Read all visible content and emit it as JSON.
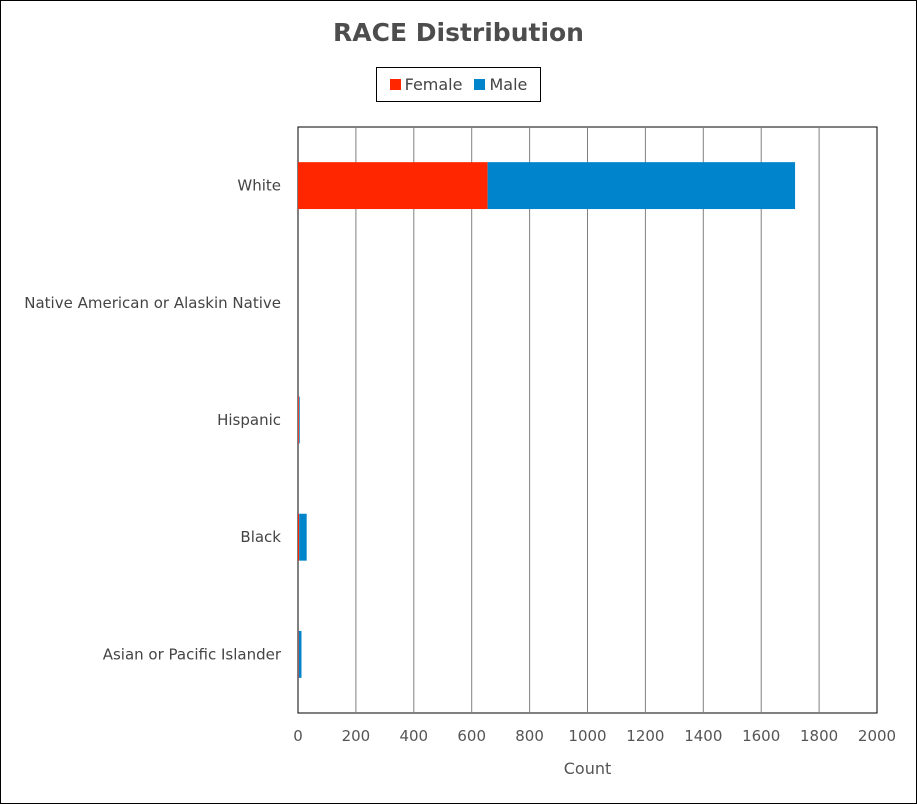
{
  "chart_data": {
    "type": "bar",
    "orientation": "horizontal",
    "stacked": true,
    "title": "RACE Distribution",
    "xlabel": "Count",
    "ylabel": "",
    "xlim": [
      0,
      2000
    ],
    "xticks": [
      "0",
      "200",
      "400",
      "600",
      "800",
      "1000",
      "1200",
      "1400",
      "1600",
      "1800",
      "2000"
    ],
    "grid": "vertical",
    "legend_position": "top",
    "categories": [
      "White",
      "Native American or Alaskin Native",
      "Hispanic",
      "Black",
      "Asian or Pacific Islander"
    ],
    "series": [
      {
        "name": "Female",
        "color": "#ff2600",
        "values": [
          655,
          0,
          3,
          4,
          2
        ]
      },
      {
        "name": "Male",
        "color": "#0085cc",
        "values": [
          1062,
          0,
          3,
          26,
          10
        ]
      }
    ]
  }
}
